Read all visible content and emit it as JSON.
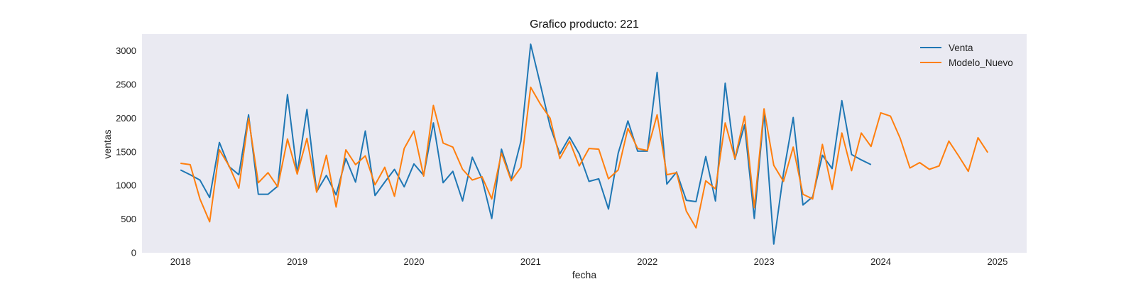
{
  "chart_data": {
    "type": "line",
    "title": "Grafico producto: 221",
    "xlabel": "fecha",
    "ylabel": "ventas",
    "xlim": [
      2017.67,
      2025.25
    ],
    "ylim": [
      0,
      3250
    ],
    "x_ticks": [
      "2018",
      "2019",
      "2020",
      "2021",
      "2022",
      "2023",
      "2024",
      "2025"
    ],
    "y_ticks": [
      "0",
      "500",
      "1000",
      "1500",
      "2000",
      "2500",
      "3000"
    ],
    "grid": false,
    "legend_position": "top-right",
    "colors": {
      "plot_bg": "#eaeaf2",
      "venta": "#1f77b4",
      "modelo": "#ff7f0e"
    },
    "series": [
      {
        "name": "Venta",
        "start_year": 2018,
        "start_month": 1,
        "values": [
          1230,
          1160,
          1080,
          820,
          1640,
          1280,
          1160,
          2050,
          870,
          870,
          990,
          2350,
          1180,
          2130,
          910,
          1150,
          860,
          1400,
          1050,
          1810,
          850,
          1050,
          1240,
          980,
          1320,
          1150,
          1930,
          1040,
          1210,
          770,
          1420,
          1100,
          510,
          1540,
          1090,
          1660,
          3100,
          2500,
          1880,
          1470,
          1720,
          1470,
          1060,
          1100,
          650,
          1480,
          1960,
          1510,
          1510,
          2680,
          1020,
          1200,
          780,
          760,
          1430,
          770,
          2520,
          1390,
          1900,
          510,
          2090,
          130,
          1180,
          2010,
          710,
          830,
          1450,
          1250,
          2260,
          1460,
          1380,
          1310
        ]
      },
      {
        "name": "Modelo_Nuevo",
        "start_year": 2018,
        "start_month": 1,
        "values": [
          1330,
          1310,
          800,
          460,
          1530,
          1290,
          960,
          2000,
          1040,
          1190,
          980,
          1690,
          1170,
          1700,
          900,
          1450,
          680,
          1530,
          1310,
          1440,
          1010,
          1270,
          840,
          1550,
          1810,
          1140,
          2190,
          1630,
          1570,
          1240,
          1080,
          1130,
          800,
          1480,
          1070,
          1270,
          2460,
          2210,
          2000,
          1400,
          1660,
          1290,
          1550,
          1540,
          1100,
          1230,
          1850,
          1550,
          1520,
          2050,
          1160,
          1190,
          620,
          370,
          1070,
          950,
          1930,
          1400,
          2030,
          670,
          2140,
          1300,
          1060,
          1570,
          870,
          800,
          1610,
          940,
          1780,
          1220,
          1780,
          1580,
          2080,
          2030,
          1700,
          1260,
          1340,
          1240,
          1290,
          1660,
          1440,
          1210,
          1710,
          1490
        ]
      }
    ]
  }
}
